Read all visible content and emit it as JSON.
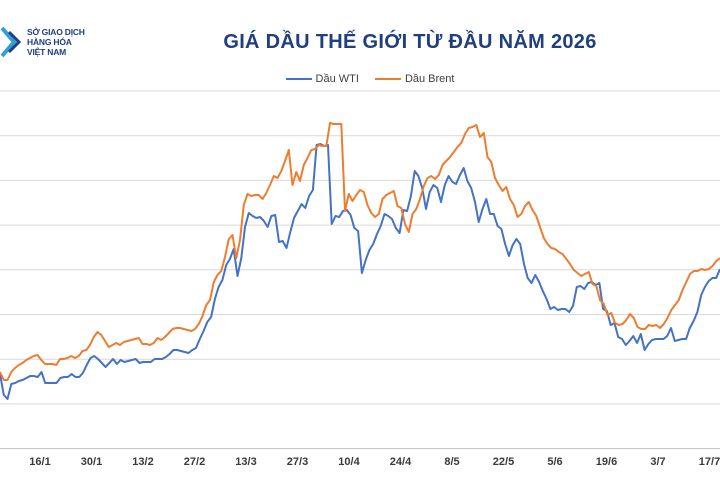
{
  "logo": {
    "line1": "SỞ GIAO DỊCH",
    "line2": "HÀNG HÓA",
    "line3": "VIỆT NAM",
    "color": "#1f3f7f",
    "accent": "#2e9fd8",
    "icon": "chevron-logo-icon"
  },
  "chart_data": {
    "type": "line",
    "title": "GIÁ DẦU THẾ GIỚI TỪ ĐẦU NĂM 2026",
    "xlabel": "",
    "ylabel": "",
    "legend_position": "top-center",
    "grid": true,
    "y_tick_labels_visible": false,
    "x_tick_labels": [
      "16/1",
      "30/1",
      "13/2",
      "27/2",
      "13/3",
      "27/3",
      "10/4",
      "24/4",
      "8/5",
      "22/5",
      "5/6",
      "19/6",
      "3/7",
      "17/7"
    ],
    "series": [
      {
        "name": "Dầu WTI",
        "color": "#4472c4",
        "values": [
          374,
          395,
          399,
          384,
          383,
          381,
          380,
          378,
          376,
          376,
          377,
          372,
          383,
          383,
          383,
          383,
          378,
          377,
          377,
          374,
          377,
          377,
          373,
          365,
          358,
          356,
          359,
          363,
          367,
          363,
          359,
          364,
          360,
          362,
          361,
          360,
          359,
          363,
          362,
          362,
          362,
          359,
          359,
          359,
          357,
          354,
          350,
          350,
          351,
          352,
          353,
          350,
          348,
          339,
          331,
          322,
          317,
          299,
          287,
          280,
          265,
          259,
          249,
          276,
          258,
          227,
          213,
          216,
          218,
          217,
          221,
          227,
          216,
          215,
          242,
          241,
          248,
          232,
          218,
          211,
          204,
          208,
          196,
          190,
          145,
          144,
          146,
          145,
          224,
          216,
          217,
          211,
          210,
          215,
          228,
          231,
          273,
          260,
          250,
          244,
          234,
          226,
          214,
          216,
          219,
          228,
          233,
          210,
          211,
          196,
          171,
          176,
          188,
          209,
          192,
          185,
          188,
          202,
          185,
          176,
          182,
          184,
          175,
          168,
          181,
          188,
          202,
          222,
          209,
          199,
          214,
          214,
          226,
          229,
          244,
          256,
          245,
          239,
          244,
          264,
          278,
          283,
          275,
          282,
          291,
          299,
          309,
          307,
          310,
          309,
          309,
          312,
          306,
          287,
          286,
          289,
          283,
          282,
          285,
          283,
          309,
          311,
          325,
          323,
          337,
          339,
          345,
          341,
          336,
          343,
          334,
          350,
          344,
          340,
          339,
          339,
          339,
          336,
          328,
          341,
          340,
          339,
          339,
          328,
          321,
          312,
          295,
          287,
          281,
          278,
          278,
          269
        ]
      },
      {
        "name": "Dầu Brent",
        "color": "#ed7d31",
        "values": [
          372,
          380,
          380,
          372,
          368,
          365,
          363,
          360,
          358,
          356,
          355,
          360,
          364,
          364,
          364,
          365,
          359,
          359,
          358,
          356,
          358,
          356,
          351,
          350,
          345,
          337,
          332,
          335,
          341,
          347,
          345,
          343,
          345,
          342,
          341,
          340,
          339,
          338,
          344,
          344,
          345,
          343,
          338,
          340,
          337,
          333,
          329,
          328,
          328,
          329,
          330,
          331,
          329,
          324,
          316,
          305,
          300,
          282,
          275,
          271,
          257,
          239,
          235,
          258,
          240,
          205,
          194,
          196,
          195,
          195,
          199,
          193,
          185,
          176,
          178,
          171,
          161,
          150,
          185,
          172,
          181,
          165,
          158,
          150,
          149,
          145,
          146,
          146,
          123,
          124,
          124,
          124,
          211,
          194,
          201,
          195,
          190,
          192,
          205,
          213,
          217,
          214,
          199,
          195,
          193,
          191,
          206,
          208,
          224,
          232,
          214,
          209,
          199,
          186,
          178,
          176,
          179,
          175,
          165,
          161,
          157,
          152,
          147,
          143,
          134,
          128,
          127,
          125,
          137,
          133,
          157,
          162,
          178,
          185,
          191,
          187,
          199,
          205,
          217,
          214,
          206,
          202,
          210,
          216,
          227,
          238,
          244,
          248,
          249,
          252,
          254,
          259,
          264,
          270,
          273,
          276,
          274,
          272,
          284,
          286,
          300,
          304,
          315,
          313,
          323,
          325,
          324,
          320,
          314,
          318,
          327,
          329,
          329,
          325,
          326,
          325,
          328,
          324,
          318,
          310,
          305,
          300,
          290,
          282,
          274,
          271,
          271,
          269,
          270,
          269,
          266,
          261,
          258
        ]
      }
    ]
  }
}
